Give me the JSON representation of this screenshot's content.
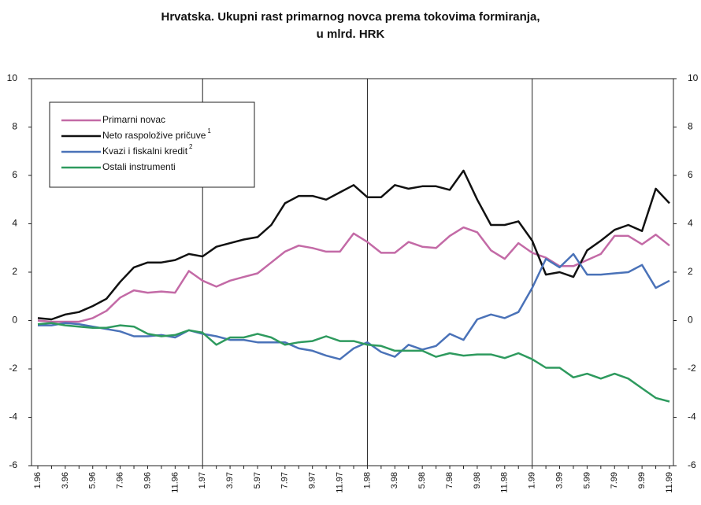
{
  "chart_data": {
    "type": "line",
    "title": [
      "Hrvatska. Ukupni rast primarnog novca prema tokovima formiranja,",
      "u mlrd. HRK"
    ],
    "categories": [
      "1.96",
      null,
      "3.96",
      null,
      "5.96",
      null,
      "7.96",
      null,
      "9.96",
      null,
      "11.96",
      null,
      "1.97",
      null,
      "3.97",
      null,
      "5.97",
      null,
      "7.97",
      null,
      "9.97",
      null,
      "11.97",
      null,
      "1.98",
      null,
      "3.98",
      null,
      "5.98",
      null,
      "7.98",
      null,
      "9.98",
      null,
      "11.98",
      null,
      "1.99",
      null,
      "3.99",
      null,
      "5.99",
      null,
      "7.99",
      null,
      "9.99",
      null,
      "11.99"
    ],
    "series": [
      {
        "name": "Primarni novac",
        "color": "#c36aa6",
        "values": [
          0.0,
          -0.05,
          -0.05,
          -0.05,
          0.1,
          0.4,
          0.95,
          1.25,
          1.15,
          1.2,
          1.15,
          2.05,
          1.65,
          1.4,
          1.65,
          1.8,
          1.95,
          2.4,
          2.85,
          3.1,
          3.0,
          2.85,
          2.85,
          3.6,
          3.25,
          2.8,
          2.8,
          3.25,
          3.05,
          3.0,
          3.5,
          3.85,
          3.65,
          2.9,
          2.55,
          3.2,
          2.8,
          2.6,
          2.25,
          2.25,
          2.5,
          2.75,
          3.5,
          3.5,
          3.15,
          3.55,
          3.1
        ]
      },
      {
        "name": "Neto raspoložive pričuve",
        "footnote": "1",
        "color": "#111111",
        "values": [
          0.1,
          0.05,
          0.25,
          0.35,
          0.6,
          0.9,
          1.6,
          2.2,
          2.4,
          2.4,
          2.5,
          2.75,
          2.65,
          3.05,
          3.2,
          3.35,
          3.45,
          3.95,
          4.85,
          5.15,
          5.15,
          5.0,
          5.3,
          5.6,
          5.1,
          5.1,
          5.6,
          5.45,
          5.55,
          5.55,
          5.4,
          6.2,
          5.0,
          3.95,
          3.95,
          4.1,
          3.3,
          1.9,
          2.0,
          1.8,
          2.9,
          3.3,
          3.75,
          3.95,
          3.7,
          5.45,
          4.85
        ]
      },
      {
        "name": "Kvazi i fiskalni kredit",
        "footnote": "2",
        "color": "#4a72b8",
        "values": [
          -0.2,
          -0.2,
          -0.1,
          -0.15,
          -0.25,
          -0.35,
          -0.45,
          -0.65,
          -0.65,
          -0.6,
          -0.7,
          -0.4,
          -0.55,
          -0.65,
          -0.8,
          -0.8,
          -0.9,
          -0.9,
          -0.9,
          -1.15,
          -1.25,
          -1.45,
          -1.6,
          -1.15,
          -0.9,
          -1.3,
          -1.5,
          -1.0,
          -1.2,
          -1.05,
          -0.55,
          -0.8,
          0.05,
          0.25,
          0.1,
          0.35,
          1.35,
          2.55,
          2.2,
          2.75,
          1.9,
          1.9,
          1.95,
          2.0,
          2.3,
          1.35,
          1.65
        ]
      },
      {
        "name": "Ostali instrumenti",
        "color": "#2e9a5e",
        "values": [
          -0.15,
          -0.1,
          -0.2,
          -0.25,
          -0.3,
          -0.3,
          -0.2,
          -0.25,
          -0.55,
          -0.65,
          -0.6,
          -0.4,
          -0.5,
          -1.0,
          -0.7,
          -0.7,
          -0.55,
          -0.7,
          -1.0,
          -0.9,
          -0.85,
          -0.65,
          -0.85,
          -0.85,
          -1.0,
          -1.05,
          -1.25,
          -1.25,
          -1.25,
          -1.5,
          -1.35,
          -1.45,
          -1.4,
          -1.4,
          -1.55,
          -1.35,
          -1.6,
          -1.95,
          -1.95,
          -2.35,
          -2.2,
          -2.4,
          -2.2,
          -2.4,
          -2.8,
          -3.2,
          -3.35
        ]
      }
    ],
    "ylim": [
      -6,
      10
    ],
    "yticks": [
      -6,
      -4,
      -2,
      0,
      2,
      4,
      6,
      8,
      10
    ],
    "y2lim": [
      -6,
      10
    ],
    "y2ticks": [
      -6,
      -4,
      -2,
      0,
      2,
      4,
      6,
      8,
      10
    ],
    "legend": "upper left"
  }
}
